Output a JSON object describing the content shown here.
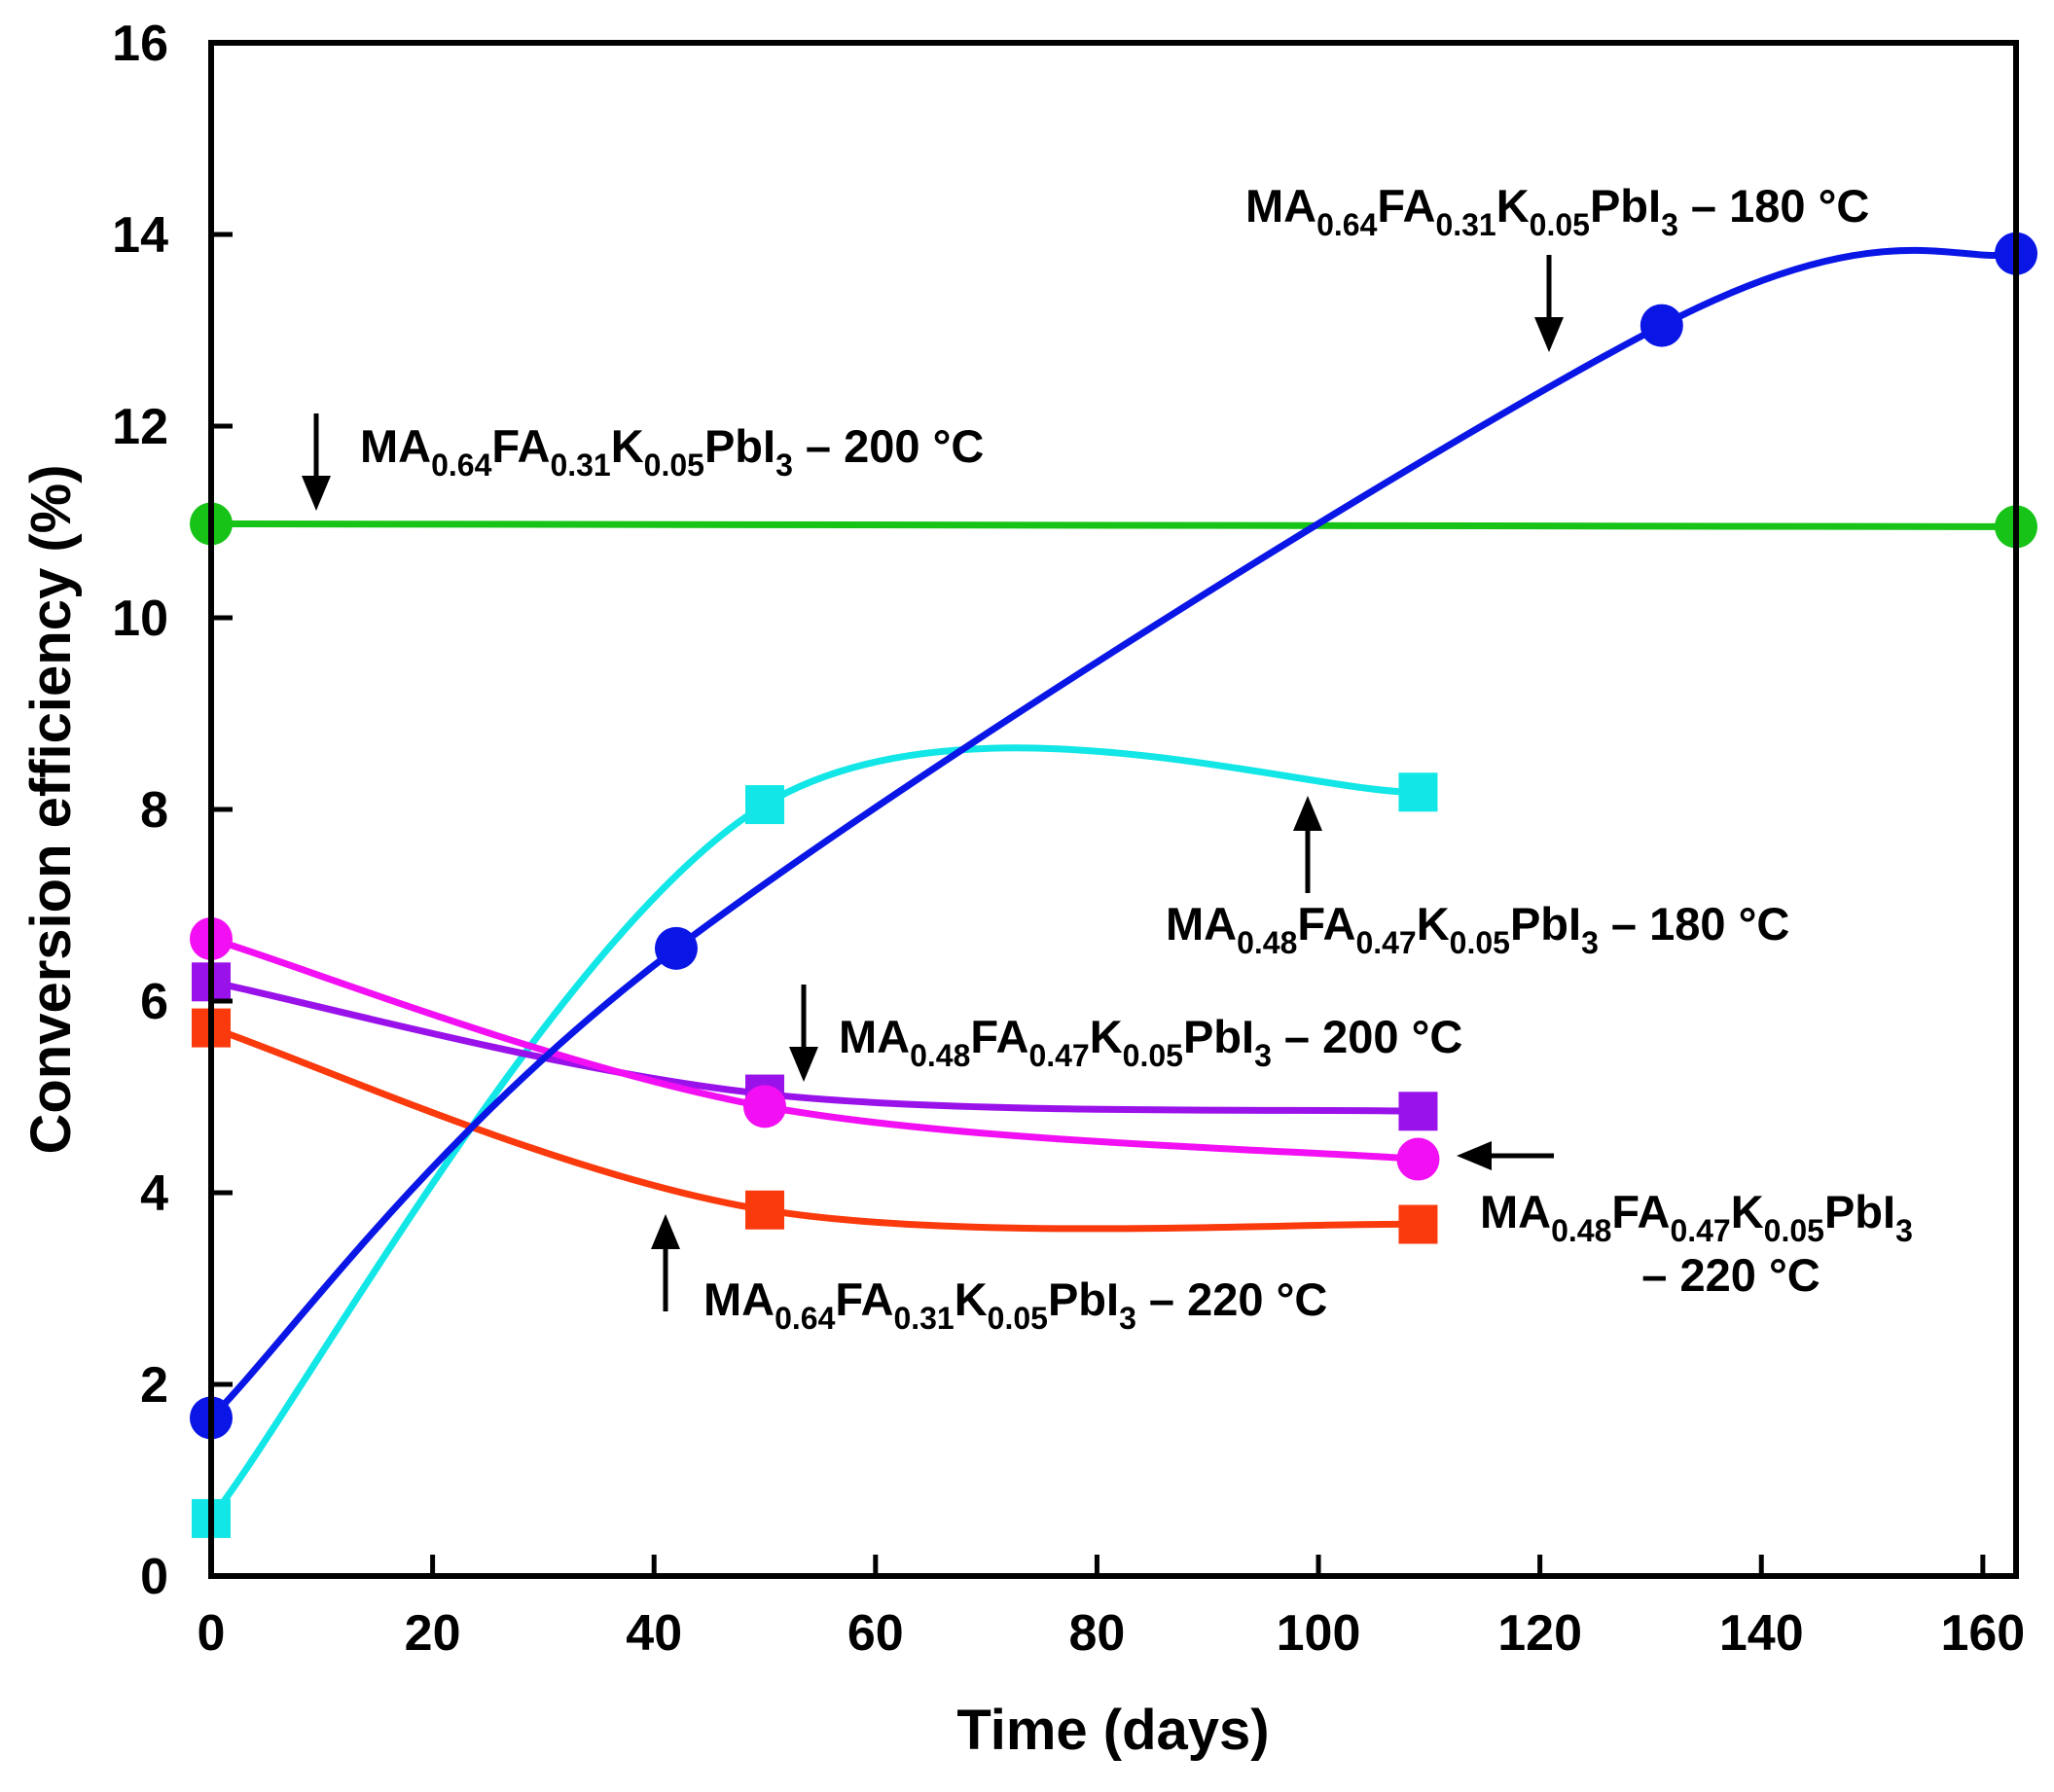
{
  "chart_data": {
    "type": "line",
    "title": "",
    "xlabel": "Time (days)",
    "ylabel": "Conversion efficiency (%)",
    "xlim": [
      0,
      163
    ],
    "ylim": [
      0,
      16
    ],
    "xticks": [
      "0",
      "20",
      "40",
      "60",
      "80",
      "100",
      "120",
      "140",
      "160"
    ],
    "yticks": [
      "0",
      "2",
      "4",
      "6",
      "8",
      "10",
      "12",
      "14",
      "16"
    ],
    "grid": false,
    "series": [
      {
        "name": "MA0.64FA0.31K0.05PbI3 – 180 °C",
        "color": "#0a16e6",
        "marker": "circle",
        "x": [
          0,
          42,
          131,
          163
        ],
        "y": [
          1.65,
          6.55,
          13.05,
          13.8
        ]
      },
      {
        "name": "MA0.64FA0.31K0.05PbI3 – 200 °C",
        "color": "#16c316",
        "marker": "circle",
        "x": [
          0,
          163
        ],
        "y": [
          10.98,
          10.95
        ]
      },
      {
        "name": "MA0.64FA0.31K0.05PbI3 – 220 °C",
        "color": "#fa3a0c",
        "marker": "square",
        "x": [
          0,
          50,
          109
        ],
        "y": [
          5.72,
          3.82,
          3.67
        ]
      },
      {
        "name": "MA0.48FA0.47K0.05PbI3 – 180 °C",
        "color": "#12e6e6",
        "marker": "square",
        "x": [
          0,
          50,
          109
        ],
        "y": [
          0.6,
          8.05,
          8.18
        ]
      },
      {
        "name": "MA0.48FA0.47K0.05PbI3 – 200 °C",
        "color": "#9a12ea",
        "marker": "square",
        "x": [
          0,
          50,
          109
        ],
        "y": [
          6.2,
          5.03,
          4.85
        ]
      },
      {
        "name": "MA0.48FA0.47K0.05PbI3 – 220 °C",
        "color": "#f30ff3",
        "marker": "circle",
        "x": [
          0,
          50,
          109
        ],
        "y": [
          6.65,
          4.9,
          4.35
        ]
      }
    ],
    "annotations": [
      {
        "id": "a180blue",
        "parts": [
          {
            "t": "MA"
          },
          {
            "t": "0.64",
            "sub": true
          },
          {
            "t": "FA"
          },
          {
            "t": "0.31",
            "sub": true
          },
          {
            "t": "K"
          },
          {
            "t": "0.05",
            "sub": true
          },
          {
            "t": "PbI"
          },
          {
            "t": "3",
            "sub": true
          },
          {
            "t": " – 180 °C"
          }
        ],
        "line2": ""
      },
      {
        "id": "a200green",
        "parts": [
          {
            "t": "MA"
          },
          {
            "t": "0.64",
            "sub": true
          },
          {
            "t": "FA"
          },
          {
            "t": "0.31",
            "sub": true
          },
          {
            "t": "K"
          },
          {
            "t": "0.05",
            "sub": true
          },
          {
            "t": "PbI"
          },
          {
            "t": "3",
            "sub": true
          },
          {
            "t": " – 200 °C"
          }
        ],
        "line2": ""
      },
      {
        "id": "a180cyan",
        "parts": [
          {
            "t": "MA"
          },
          {
            "t": "0.48",
            "sub": true
          },
          {
            "t": "FA"
          },
          {
            "t": "0.47",
            "sub": true
          },
          {
            "t": "K"
          },
          {
            "t": "0.05",
            "sub": true
          },
          {
            "t": "PbI"
          },
          {
            "t": "3",
            "sub": true
          },
          {
            "t": " – 180 °C"
          }
        ],
        "line2": ""
      },
      {
        "id": "a200purple",
        "parts": [
          {
            "t": "MA"
          },
          {
            "t": "0.48",
            "sub": true
          },
          {
            "t": "FA"
          },
          {
            "t": "0.47",
            "sub": true
          },
          {
            "t": "K"
          },
          {
            "t": "0.05",
            "sub": true
          },
          {
            "t": "PbI"
          },
          {
            "t": "3",
            "sub": true
          },
          {
            "t": " – 200 °C"
          }
        ],
        "line2": ""
      },
      {
        "id": "a220magenta",
        "parts": [
          {
            "t": "MA"
          },
          {
            "t": "0.48",
            "sub": true
          },
          {
            "t": "FA"
          },
          {
            "t": "0.47",
            "sub": true
          },
          {
            "t": "K"
          },
          {
            "t": "0.05",
            "sub": true
          },
          {
            "t": "PbI"
          },
          {
            "t": "3",
            "sub": true
          }
        ],
        "line2": "– 220 °C"
      },
      {
        "id": "a220red",
        "parts": [
          {
            "t": "MA"
          },
          {
            "t": "0.64",
            "sub": true
          },
          {
            "t": "FA"
          },
          {
            "t": "0.31",
            "sub": true
          },
          {
            "t": "K"
          },
          {
            "t": "0.05",
            "sub": true
          },
          {
            "t": "PbI"
          },
          {
            "t": "3",
            "sub": true
          },
          {
            "t": " – 220 °C"
          }
        ],
        "line2": ""
      }
    ]
  }
}
